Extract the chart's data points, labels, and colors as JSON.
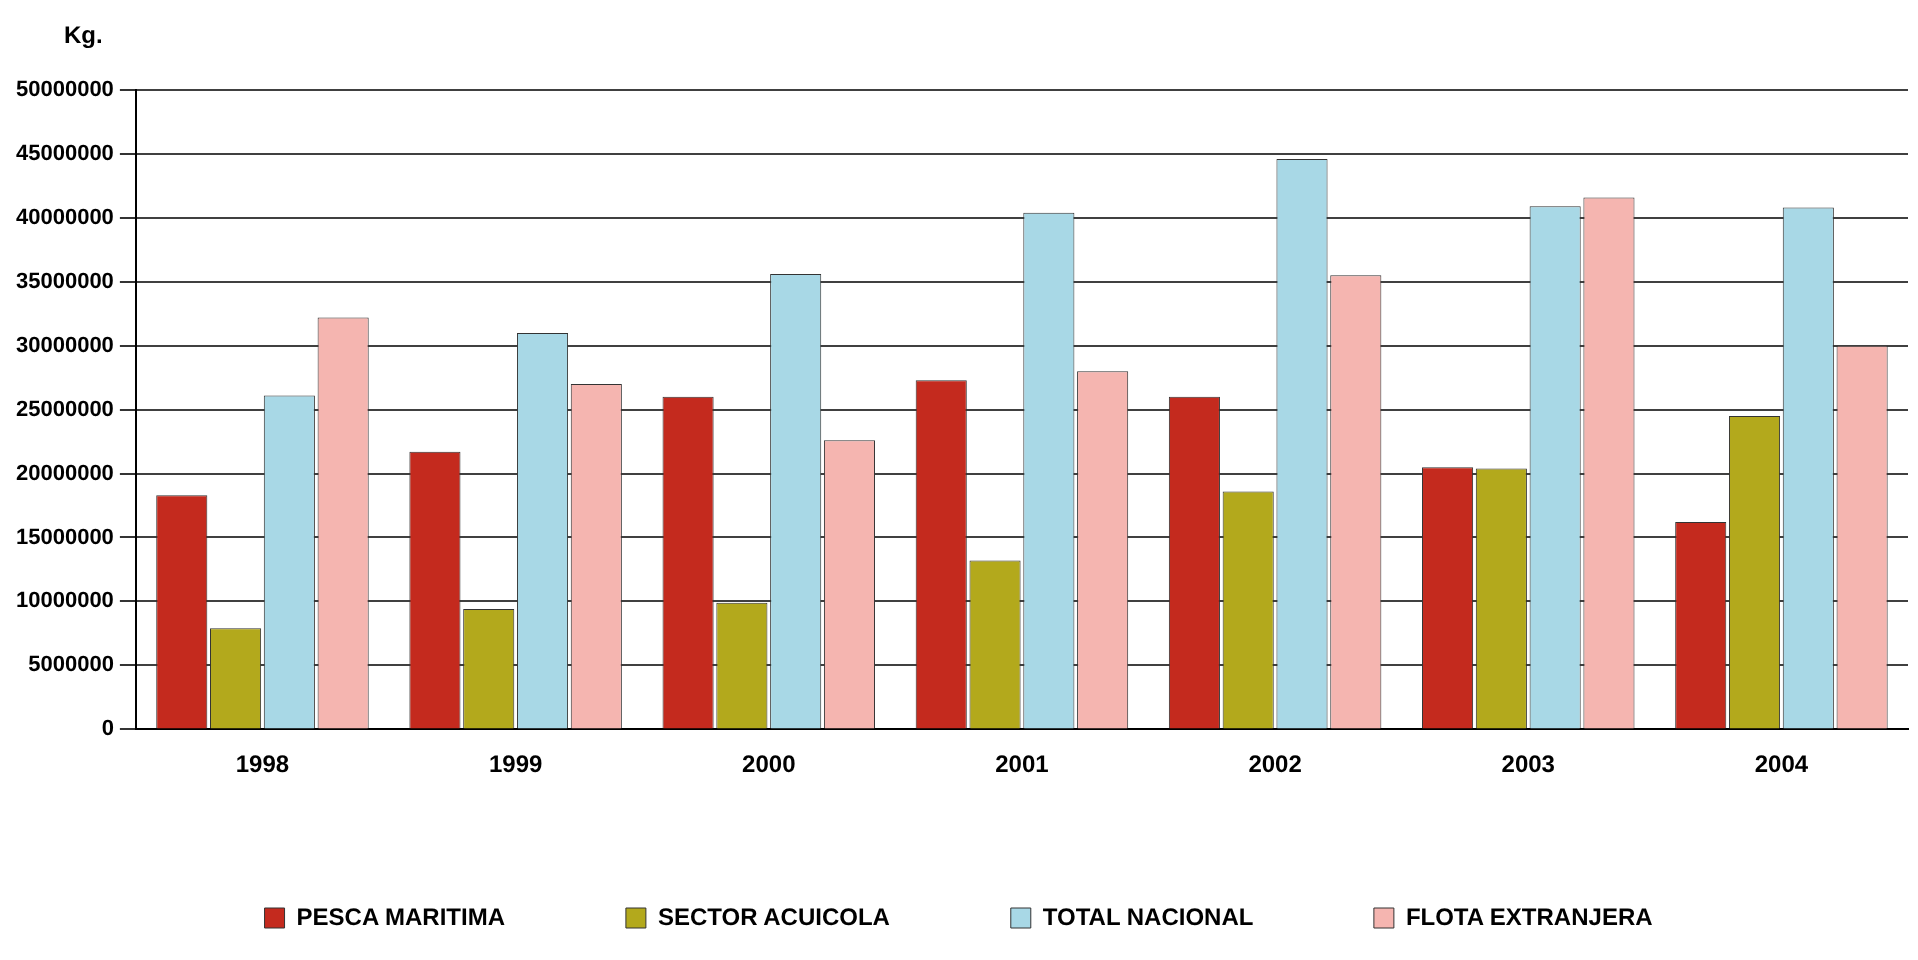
{
  "chart_data": {
    "type": "bar",
    "ylabel": "Kg.",
    "categories": [
      "1998",
      "1999",
      "2000",
      "2001",
      "2002",
      "2003",
      "2004"
    ],
    "series": [
      {
        "name": "PESCA MARITIMA",
        "color": "#c42a1e",
        "values": [
          18300000,
          21700000,
          26000000,
          27300000,
          26000000,
          20500000,
          16200000
        ]
      },
      {
        "name": "SECTOR ACUICOLA",
        "color": "#b3a91c",
        "values": [
          7900000,
          9400000,
          9900000,
          13200000,
          18600000,
          20400000,
          24500000
        ]
      },
      {
        "name": "TOTAL NACIONAL",
        "color": "#a8d8e6",
        "values": [
          26100000,
          31000000,
          35600000,
          40400000,
          44600000,
          40900000,
          40800000
        ]
      },
      {
        "name": "FLOTA EXTRANJERA",
        "color": "#f5b5b0",
        "values": [
          32200000,
          27000000,
          22600000,
          28000000,
          35500000,
          41600000,
          30000000
        ]
      }
    ],
    "ylim": [
      0,
      50000000
    ],
    "yticks": [
      0,
      5000000,
      10000000,
      15000000,
      20000000,
      25000000,
      30000000,
      35000000,
      40000000,
      45000000,
      50000000
    ],
    "grid": "y",
    "legend": "bottom"
  }
}
